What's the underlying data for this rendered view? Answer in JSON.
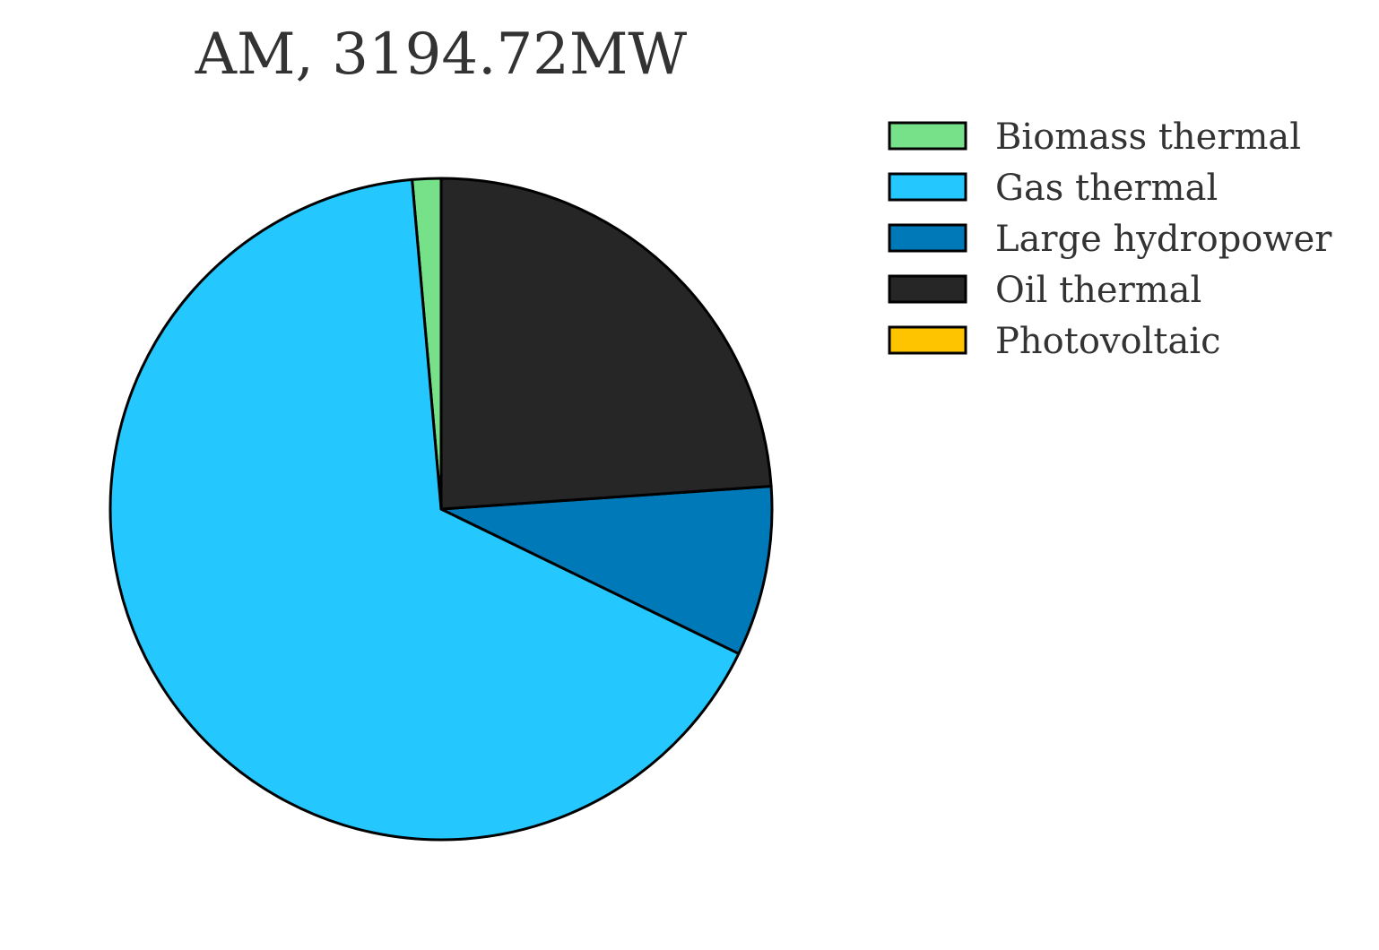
{
  "chart_data": {
    "type": "pie",
    "title": "AM, 3194.72MW",
    "start_angle_deg": 90,
    "direction": "counterclockwise",
    "legend_position": "right",
    "slices": [
      {
        "label": "Biomass thermal",
        "value": 1.4,
        "color": "#77e189"
      },
      {
        "label": "Gas thermal",
        "value": 66.4,
        "color": "#24c8ff"
      },
      {
        "label": "Large hydropower",
        "value": 8.3,
        "color": "#0079b8"
      },
      {
        "label": "Oil thermal",
        "value": 23.9,
        "color": "#262626"
      },
      {
        "label": "Photovoltaic",
        "value": 0.0,
        "color": "#ffc400"
      }
    ]
  }
}
